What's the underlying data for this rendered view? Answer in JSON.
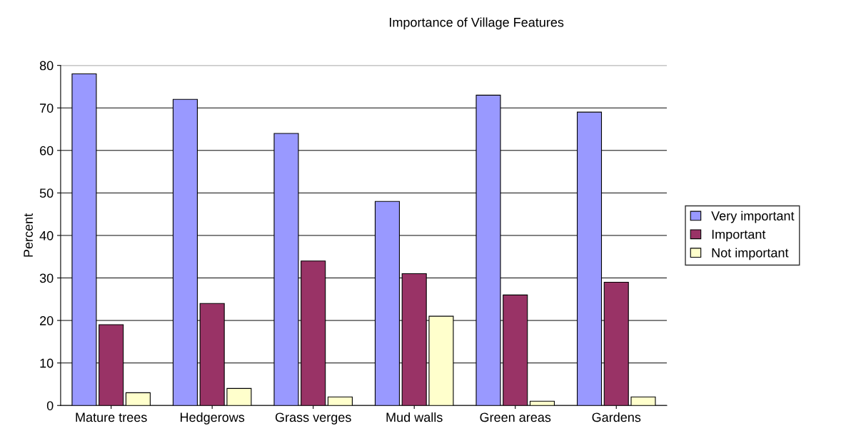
{
  "chart_data": {
    "type": "bar",
    "title": "Importance of Village Features",
    "ylabel": "Percent",
    "categories": [
      "Mature trees",
      "Hedgerows",
      "Grass verges",
      "Mud walls",
      "Green areas",
      "Gardens"
    ],
    "series": [
      {
        "name": "Very important",
        "color": "#9999ff",
        "values": [
          78,
          72,
          64,
          48,
          73,
          69
        ]
      },
      {
        "name": "Important",
        "color": "#993366",
        "values": [
          19,
          24,
          34,
          31,
          26,
          29
        ]
      },
      {
        "name": "Not important",
        "color": "#ffffcc",
        "values": [
          3,
          4,
          2,
          21,
          1,
          2
        ]
      }
    ],
    "ylim": [
      0,
      80
    ],
    "yticks": [
      0,
      10,
      20,
      30,
      40,
      50,
      60,
      70,
      80
    ],
    "grid": "y",
    "legend": "right"
  }
}
